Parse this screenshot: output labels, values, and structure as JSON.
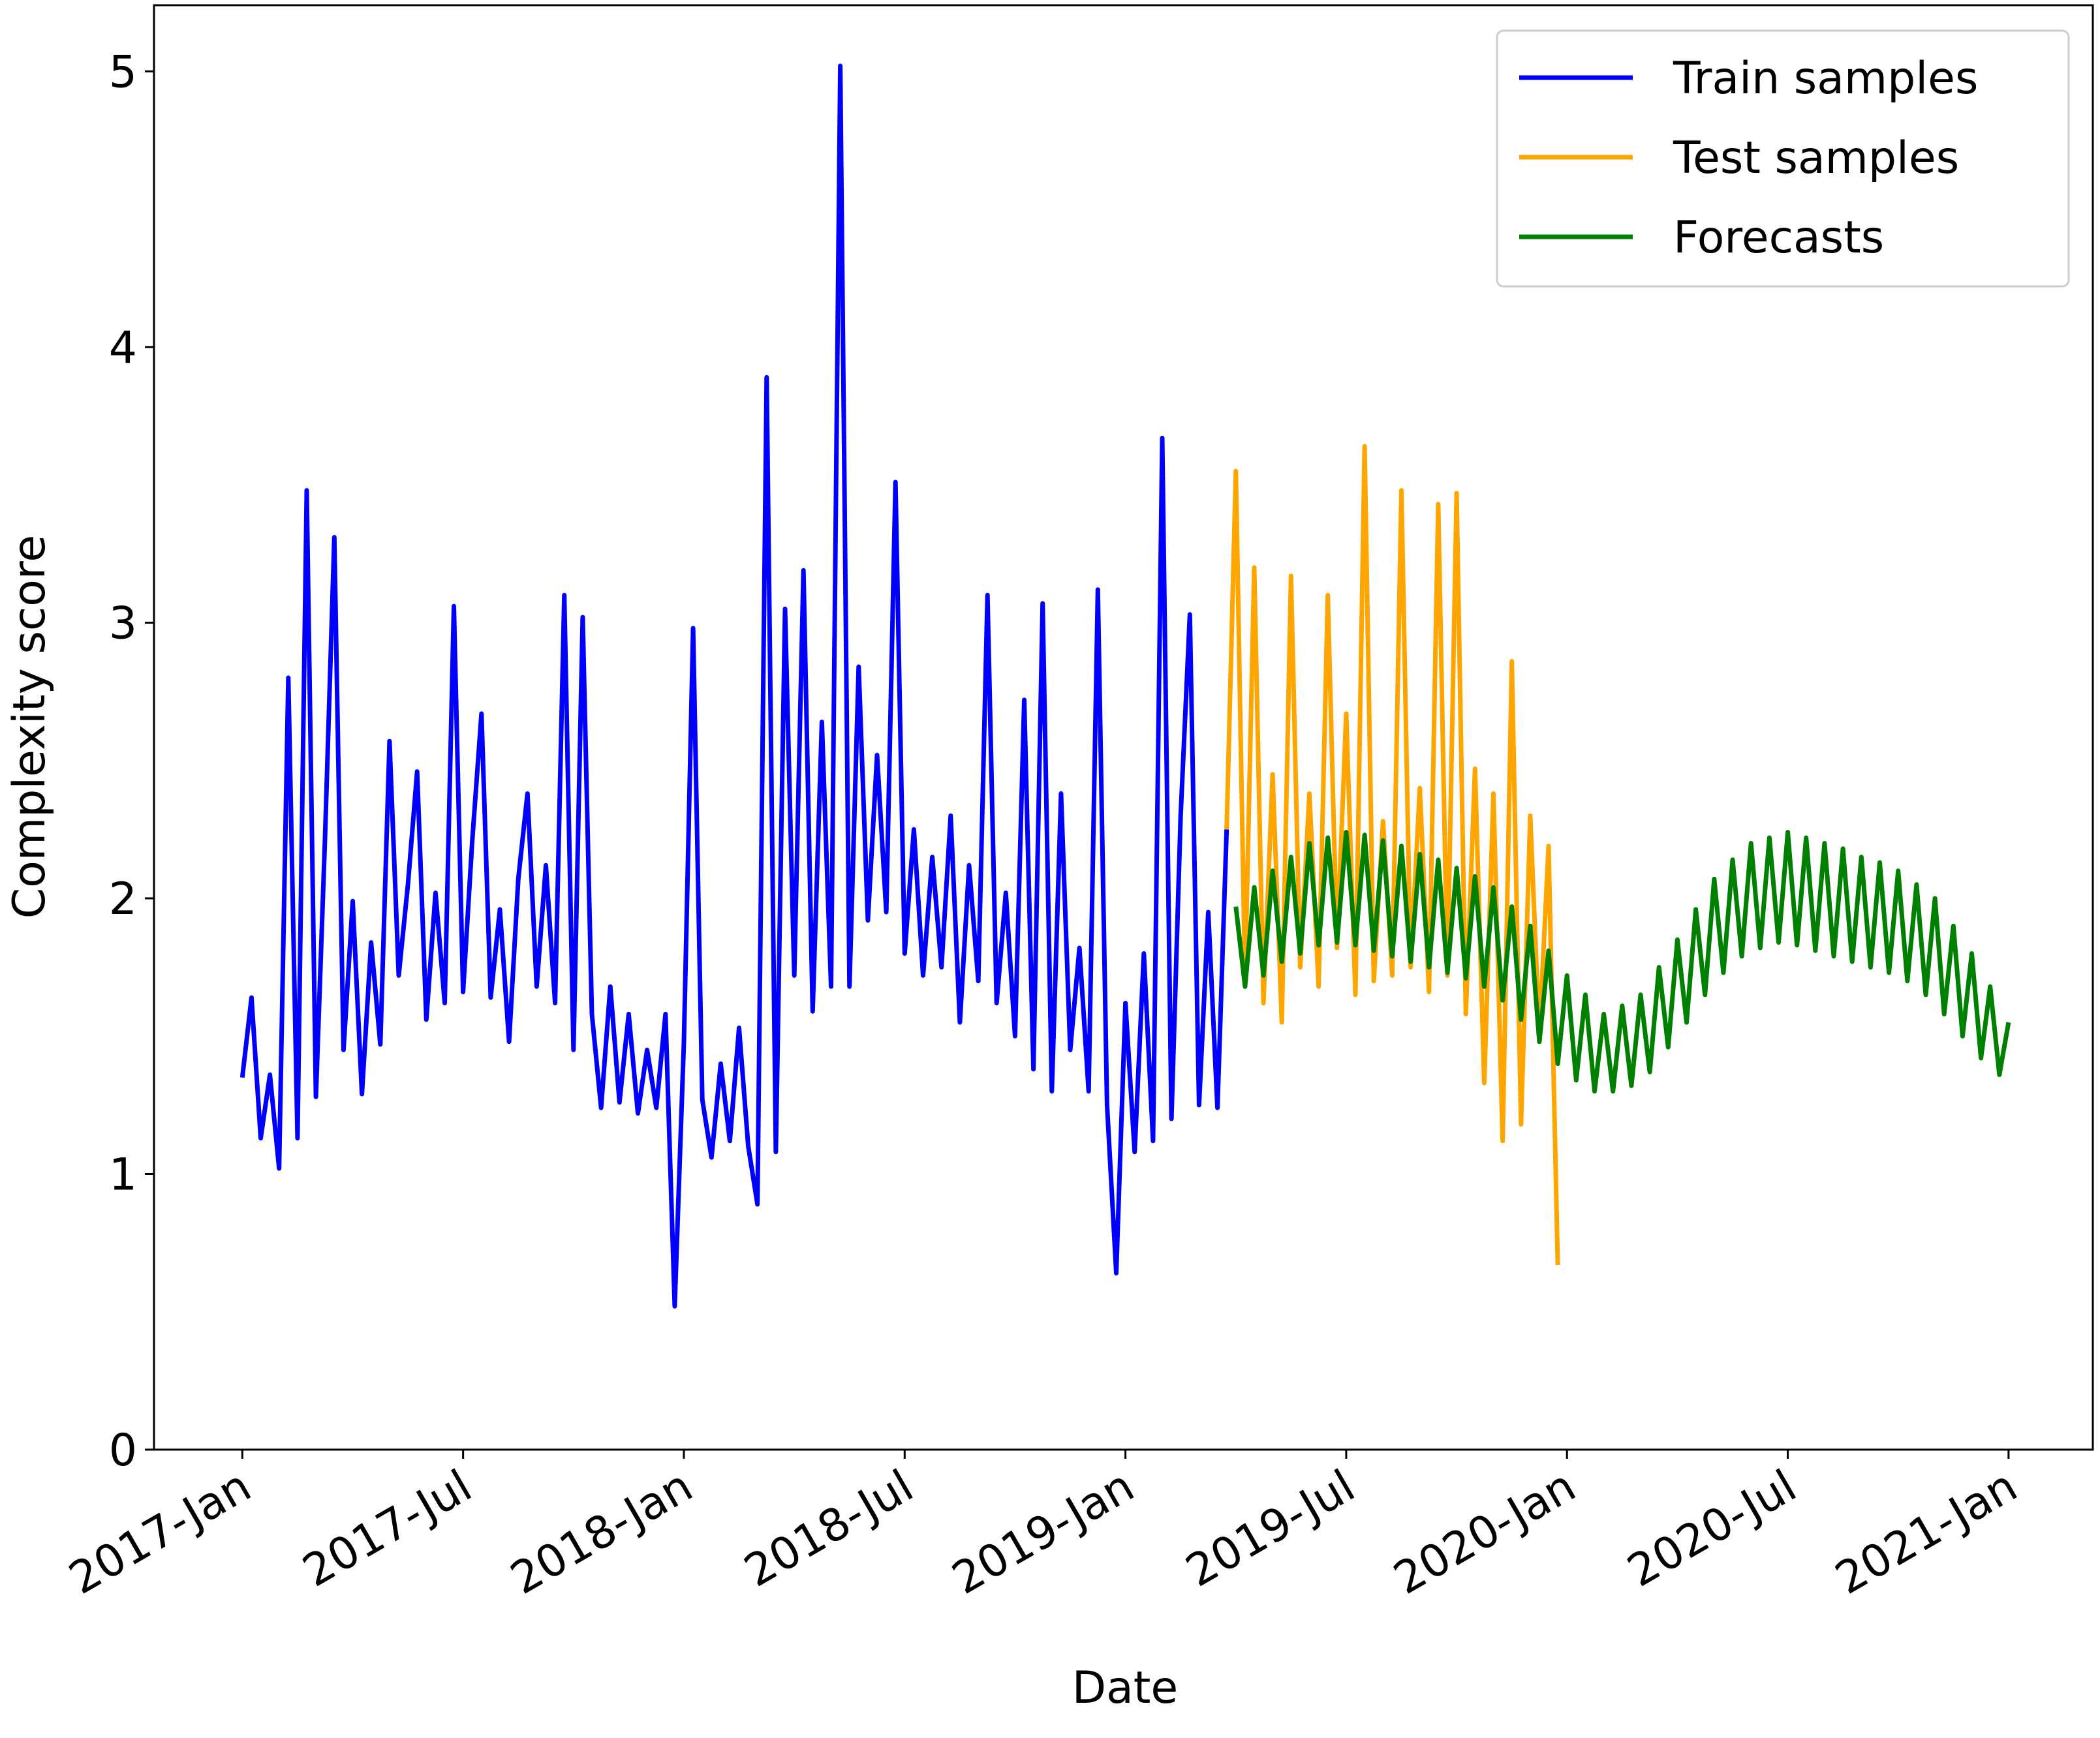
{
  "chart_data": {
    "type": "line",
    "xlabel": "Date",
    "ylabel": "Complexity score",
    "xlim": [
      -2.4,
      50.29
    ],
    "ylim": [
      0,
      5.24
    ],
    "xticks": [
      {
        "value": 0,
        "label": "2017-Jan"
      },
      {
        "value": 6,
        "label": "2017-Jul"
      },
      {
        "value": 12,
        "label": "2018-Jan"
      },
      {
        "value": 18,
        "label": "2018-Jul"
      },
      {
        "value": 24,
        "label": "2019-Jan"
      },
      {
        "value": 30,
        "label": "2019-Jul"
      },
      {
        "value": 36,
        "label": "2020-Jan"
      },
      {
        "value": 42,
        "label": "2020-Jul"
      },
      {
        "value": 48,
        "label": "2021-Jan"
      }
    ],
    "yticks": [
      0,
      1,
      2,
      3,
      4,
      5
    ],
    "grid": false,
    "legend": "upper right",
    "series": [
      {
        "name": "Train samples",
        "color": "#0000ff",
        "x": [
          0,
          0.25,
          0.5,
          0.75,
          1,
          1.25,
          1.5,
          1.75,
          2,
          2.25,
          2.5,
          2.75,
          3,
          3.25,
          3.5,
          3.75,
          4,
          4.25,
          4.5,
          4.75,
          5,
          5.25,
          5.5,
          5.75,
          6,
          6.25,
          6.5,
          6.75,
          7,
          7.25,
          7.5,
          7.75,
          8,
          8.25,
          8.5,
          8.75,
          9,
          9.25,
          9.5,
          9.75,
          10,
          10.25,
          10.5,
          10.75,
          11,
          11.25,
          11.5,
          11.75,
          12,
          12.25,
          12.5,
          12.75,
          13,
          13.25,
          13.5,
          13.75,
          14,
          14.25,
          14.5,
          14.75,
          15,
          15.25,
          15.5,
          15.75,
          16,
          16.25,
          16.5,
          16.75,
          17,
          17.25,
          17.5,
          17.75,
          18,
          18.25,
          18.5,
          18.75,
          19,
          19.25,
          19.5,
          19.75,
          20,
          20.25,
          20.5,
          20.75,
          21,
          21.25,
          21.5,
          21.75,
          22,
          22.25,
          22.5,
          22.75,
          23,
          23.25,
          23.5,
          23.75,
          24,
          24.25,
          24.5,
          24.75,
          25,
          25.25,
          25.5,
          25.75,
          26,
          26.25,
          26.5,
          26.75
        ],
        "values": [
          1.35,
          1.64,
          1.13,
          1.36,
          1.02,
          2.8,
          1.13,
          3.48,
          1.28,
          2.23,
          3.31,
          1.45,
          1.99,
          1.29,
          1.84,
          1.47,
          2.57,
          1.72,
          2.05,
          2.46,
          1.56,
          2.02,
          1.62,
          3.06,
          1.66,
          2.21,
          2.67,
          1.64,
          1.96,
          1.48,
          2.07,
          2.38,
          1.68,
          2.12,
          1.62,
          3.1,
          1.45,
          3.02,
          1.58,
          1.24,
          1.68,
          1.26,
          1.58,
          1.22,
          1.45,
          1.24,
          1.58,
          0.52,
          1.48,
          2.98,
          1.27,
          1.06,
          1.4,
          1.12,
          1.53,
          1.1,
          0.89,
          3.89,
          1.08,
          3.05,
          1.72,
          3.19,
          1.59,
          2.64,
          1.68,
          5.02,
          1.68,
          2.84,
          1.92,
          2.52,
          1.95,
          3.51,
          1.8,
          2.25,
          1.72,
          2.15,
          1.75,
          2.3,
          1.55,
          2.12,
          1.7,
          3.1,
          1.62,
          2.02,
          1.5,
          2.72,
          1.38,
          3.07,
          1.3,
          2.38,
          1.45,
          1.82,
          1.3,
          3.12,
          1.25,
          0.64,
          1.62,
          1.08,
          1.8,
          1.12,
          3.67,
          1.2,
          2.3,
          3.03,
          1.25,
          1.95,
          1.24,
          2.25
        ]
      },
      {
        "name": "Test samples",
        "color": "#ffa500",
        "x": [
          26.75,
          27,
          27.25,
          27.5,
          27.75,
          28,
          28.25,
          28.5,
          28.75,
          29,
          29.25,
          29.5,
          29.75,
          30,
          30.25,
          30.5,
          30.75,
          31,
          31.25,
          31.5,
          31.75,
          32,
          32.25,
          32.5,
          32.75,
          33,
          33.25,
          33.5,
          33.75,
          34,
          34.25,
          34.5,
          34.75,
          35,
          35.25,
          35.5,
          35.75
        ],
        "values": [
          2.25,
          3.55,
          1.7,
          3.2,
          1.62,
          2.45,
          1.55,
          3.17,
          1.75,
          2.38,
          1.68,
          3.1,
          1.82,
          2.67,
          1.65,
          3.64,
          1.7,
          2.28,
          1.72,
          3.48,
          1.75,
          2.4,
          1.66,
          3.43,
          1.72,
          3.47,
          1.58,
          2.47,
          1.33,
          2.38,
          1.12,
          2.86,
          1.18,
          2.3,
          1.5,
          2.19,
          0.67
        ]
      },
      {
        "name": "Forecasts",
        "color": "#008000",
        "x": [
          27,
          27.25,
          27.5,
          27.75,
          28,
          28.25,
          28.5,
          28.75,
          29,
          29.25,
          29.5,
          29.75,
          30,
          30.25,
          30.5,
          30.75,
          31,
          31.25,
          31.5,
          31.75,
          32,
          32.25,
          32.5,
          32.75,
          33,
          33.25,
          33.5,
          33.75,
          34,
          34.25,
          34.5,
          34.75,
          35,
          35.25,
          35.5,
          35.75,
          36,
          36.25,
          36.5,
          36.75,
          37,
          37.25,
          37.5,
          37.75,
          38,
          38.25,
          38.5,
          38.75,
          39,
          39.25,
          39.5,
          39.75,
          40,
          40.25,
          40.5,
          40.75,
          41,
          41.25,
          41.5,
          41.75,
          42,
          42.25,
          42.5,
          42.75,
          43,
          43.25,
          43.5,
          43.75,
          44,
          44.25,
          44.5,
          44.75,
          45,
          45.25,
          45.5,
          45.75,
          46,
          46.25,
          46.5,
          46.75,
          47,
          47.25,
          47.5,
          47.75,
          48
        ],
        "values": [
          1.97,
          1.68,
          2.04,
          1.72,
          2.1,
          1.77,
          2.15,
          1.8,
          2.2,
          1.83,
          2.22,
          1.84,
          2.24,
          1.83,
          2.23,
          1.81,
          2.21,
          1.79,
          2.19,
          1.77,
          2.16,
          1.75,
          2.14,
          1.73,
          2.11,
          1.71,
          2.08,
          1.68,
          2.04,
          1.63,
          1.97,
          1.56,
          1.9,
          1.48,
          1.81,
          1.4,
          1.72,
          1.34,
          1.65,
          1.3,
          1.58,
          1.3,
          1.61,
          1.32,
          1.65,
          1.37,
          1.75,
          1.46,
          1.85,
          1.55,
          1.96,
          1.65,
          2.07,
          1.73,
          2.14,
          1.79,
          2.2,
          1.82,
          2.22,
          1.84,
          2.24,
          1.83,
          2.22,
          1.81,
          2.2,
          1.79,
          2.18,
          1.77,
          2.15,
          1.75,
          2.13,
          1.73,
          2.1,
          1.7,
          2.05,
          1.65,
          2.0,
          1.58,
          1.9,
          1.5,
          1.8,
          1.42,
          1.68,
          1.36,
          1.55
        ]
      }
    ]
  }
}
